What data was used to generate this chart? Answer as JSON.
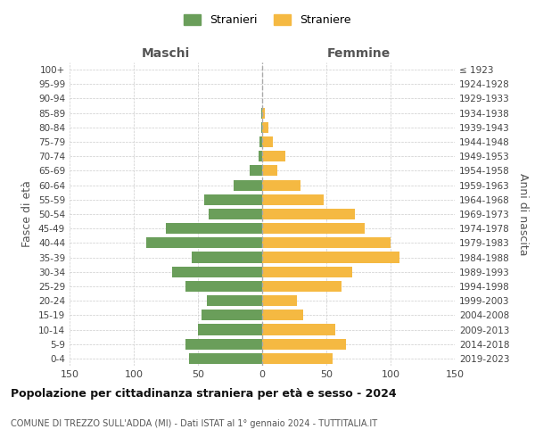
{
  "age_groups": [
    "0-4",
    "5-9",
    "10-14",
    "15-19",
    "20-24",
    "25-29",
    "30-34",
    "35-39",
    "40-44",
    "45-49",
    "50-54",
    "55-59",
    "60-64",
    "65-69",
    "70-74",
    "75-79",
    "80-84",
    "85-89",
    "90-94",
    "95-99",
    "100+"
  ],
  "birth_years": [
    "2019-2023",
    "2014-2018",
    "2009-2013",
    "2004-2008",
    "1999-2003",
    "1994-1998",
    "1989-1993",
    "1984-1988",
    "1979-1983",
    "1974-1978",
    "1969-1973",
    "1964-1968",
    "1959-1963",
    "1954-1958",
    "1949-1953",
    "1944-1948",
    "1939-1943",
    "1934-1938",
    "1929-1933",
    "1924-1928",
    "≤ 1923"
  ],
  "maschi": [
    57,
    60,
    50,
    47,
    43,
    60,
    70,
    55,
    90,
    75,
    42,
    45,
    22,
    10,
    3,
    2,
    1,
    1,
    0,
    0,
    0
  ],
  "femmine": [
    55,
    65,
    57,
    32,
    27,
    62,
    70,
    107,
    100,
    80,
    72,
    48,
    30,
    12,
    18,
    8,
    5,
    2,
    0,
    0,
    0
  ],
  "color_maschi": "#6a9e5a",
  "color_femmine": "#f5b942",
  "title_main": "Popolazione per cittadinanza straniera per età e sesso - 2024",
  "title_sub": "COMUNE DI TREZZO SULL'ADDA (MI) - Dati ISTAT al 1° gennaio 2024 - TUTTITALIA.IT",
  "xlabel_left": "Maschi",
  "xlabel_right": "Femmine",
  "ylabel_left": "Fasce di età",
  "ylabel_right": "Anni di nascita",
  "legend_maschi": "Stranieri",
  "legend_femmine": "Straniere",
  "xlim": 150,
  "background_color": "#ffffff",
  "grid_color": "#cccccc"
}
